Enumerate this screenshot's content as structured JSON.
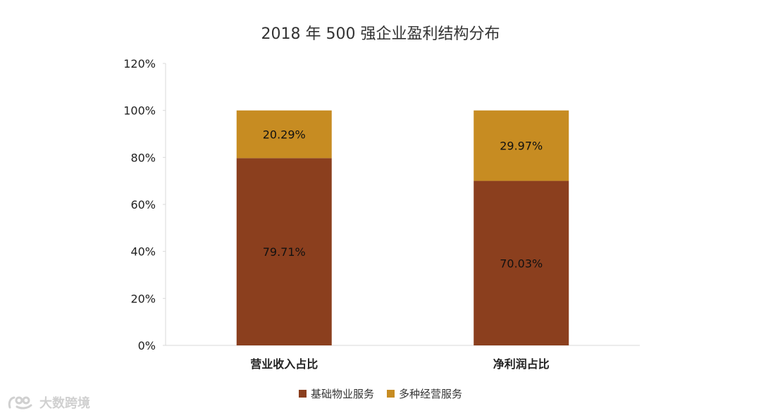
{
  "chart_data": {
    "type": "bar",
    "stacked": true,
    "title": "2018 年 500 强企业盈利结构分布",
    "categories": [
      "营业收入占比",
      "净利润占比"
    ],
    "series": [
      {
        "name": "基础物业服务",
        "values": [
          79.71,
          70.03
        ],
        "labels": [
          "79.71%",
          "70.03%"
        ],
        "color": "#8b3f1e"
      },
      {
        "name": "多种经营服务",
        "values": [
          20.29,
          29.97
        ],
        "labels": [
          "20.29%",
          "29.97%"
        ],
        "color": "#c78c22"
      }
    ],
    "ylim": [
      0,
      120
    ],
    "yticks": [
      0,
      20,
      40,
      60,
      80,
      100,
      120
    ],
    "ytick_labels": [
      "0%",
      "20%",
      "40%",
      "60%",
      "80%",
      "100%",
      "120%"
    ],
    "grid": false,
    "legend_position": "bottom-center",
    "xlabel": "",
    "ylabel": ""
  },
  "watermark": {
    "text": "大数跨境"
  }
}
